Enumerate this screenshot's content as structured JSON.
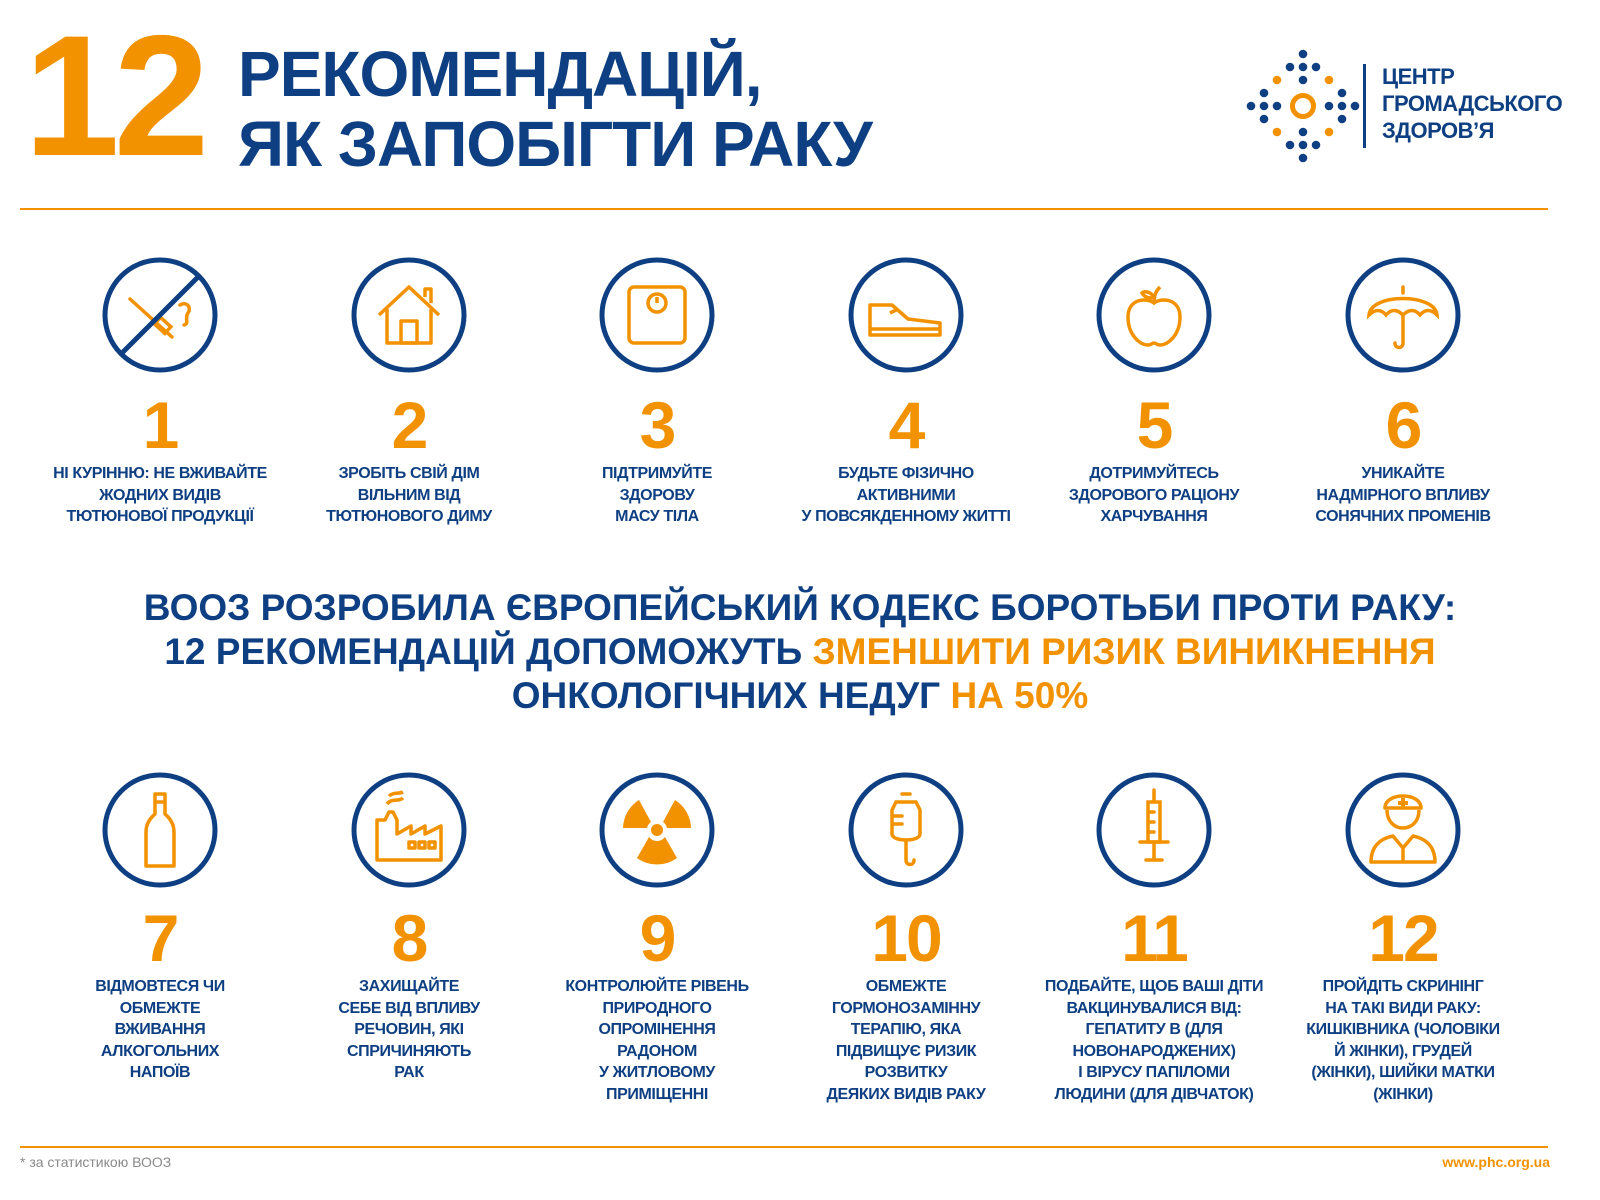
{
  "header": {
    "big_number": "12",
    "title_line1": "РЕКОМЕНДАЦІЙ,",
    "title_line2": "ЯК ЗАПОБІГТИ РАКУ"
  },
  "logo": {
    "line1": "ЦЕНТР",
    "line2": "ГРОМАДСЬКОГО",
    "line3": "ЗДОРОВ’Я"
  },
  "colors": {
    "blue": "#0e3f82",
    "orange": "#f39200"
  },
  "items_top": [
    {
      "number": "1",
      "icon": "no-smoking-icon",
      "text": "НІ КУРІННЮ: НЕ ВЖИВАЙТЕ\nЖОДНИХ ВИДІВ\nТЮТЮНОВОЇ ПРОДУКЦІЇ"
    },
    {
      "number": "2",
      "icon": "house-icon",
      "text": "ЗРОБІТЬ СВІЙ ДІМ\nВІЛЬНИМ ВІД\nТЮТЮНОВОГО ДИМУ"
    },
    {
      "number": "3",
      "icon": "scale-icon",
      "text": "ПІДТРИМУЙТЕ\nЗДОРОВУ\nМАСУ ТІЛА"
    },
    {
      "number": "4",
      "icon": "sneaker-icon",
      "text": "БУДЬТЕ ФІЗИЧНО\nАКТИВНИМИ\nУ ПОВСЯКДЕННОМУ ЖИТТІ"
    },
    {
      "number": "5",
      "icon": "apple-icon",
      "text": "ДОТРИМУЙТЕСЬ\nЗДОРОВОГО РАЦІОНУ\nХАРЧУВАННЯ"
    },
    {
      "number": "6",
      "icon": "umbrella-icon",
      "text": "УНИКАЙТЕ\nНАДМІРНОГО ВПЛИВУ\nСОНЯЧНИХ ПРОМЕНІВ"
    }
  ],
  "middle": {
    "line1": "ВООЗ РОЗРОБИЛА ЄВРОПЕЙСЬКИЙ КОДЕКС БОРОТЬБИ ПРОТИ РАКУ:",
    "line2_a": "12 РЕКОМЕНДАЦІЙ ДОПОМОЖУТЬ ",
    "line2_b": "ЗМЕНШИТИ РИЗИК ВИНИКНЕННЯ",
    "line3_a": "ОНКОЛОГІЧНИХ НЕДУГ ",
    "line3_b": "НА 50%"
  },
  "items_bottom": [
    {
      "number": "7",
      "icon": "bottle-icon",
      "text": "ВІДМОВТЕСЯ ЧИ\nОБМЕЖТЕ\nВЖИВАННЯ\nАЛКОГОЛЬНИХ\nНАПОЇВ"
    },
    {
      "number": "8",
      "icon": "factory-icon",
      "text": "ЗАХИЩАЙТЕ\nСЕБЕ ВІД ВПЛИВУ\nРЕЧОВИН, ЯКІ\nСПРИЧИНЯЮТЬ\nРАК"
    },
    {
      "number": "9",
      "icon": "radiation-icon",
      "text": "КОНТРОЛЮЙТЕ РІВЕНЬ\nПРИРОДНОГО\nОПРОМІНЕННЯ\nРАДОНОМ\nУ ЖИТЛОВОМУ\nПРИМІЩЕННІ"
    },
    {
      "number": "10",
      "icon": "iv-drip-icon",
      "text": "ОБМЕЖТЕ\nГОРМОНОЗАМІННУ\nТЕРАПІЮ, ЯКА\nПІДВИЩУЄ РИЗИК\nРОЗВИТКУ\nДЕЯКИХ ВИДІВ РАКУ"
    },
    {
      "number": "11",
      "icon": "syringe-icon",
      "text": "ПОДБАЙТЕ, ЩОБ ВАШІ ДІТИ\nВАКЦИНУВАЛИСЯ ВІД:\nГЕПАТИТУ B (ДЛЯ\nНОВОНАРОДЖЕНИХ)\nІ ВІРУСУ ПАПІЛОМИ\nЛЮДИНИ (ДЛЯ ДІВЧАТОК)"
    },
    {
      "number": "12",
      "icon": "doctor-icon",
      "text": "ПРОЙДІТЬ СКРИНІНГ\nНА ТАКІ ВИДИ РАКУ:\nКИШКІВНИКА (ЧОЛОВІКИ\nЙ ЖІНКИ), ГРУДЕЙ\n(ЖІНКИ), ШИЙКИ МАТКИ\n(ЖІНКИ)"
    }
  ],
  "footer": {
    "note": "* за статистикою ВООЗ",
    "url": "www.phc.org.ua"
  }
}
